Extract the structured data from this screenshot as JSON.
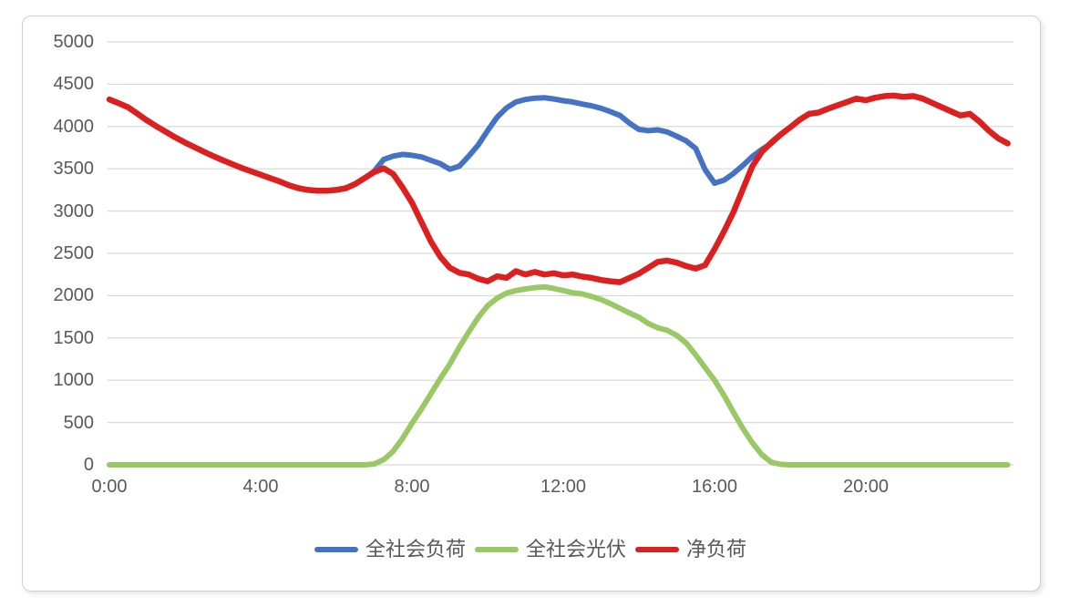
{
  "chart_data": {
    "type": "line",
    "title": "",
    "grid": "horizontal",
    "legend_position": "bottom",
    "background": "#ffffff",
    "gridline_color": "#d9d9d9",
    "axis_text_color": "#595959",
    "y_axis": {
      "min": 0,
      "max": 5000,
      "step": 500,
      "tick_labels": [
        "5000",
        "4500",
        "4000",
        "3500",
        "3000",
        "2500",
        "2000",
        "1500",
        "1000",
        "500",
        "0"
      ]
    },
    "x_axis": {
      "tick_labels": [
        "0:00",
        "4:00",
        "8:00",
        "12:00",
        "16:00",
        "20:00"
      ],
      "tick_hours": [
        0,
        4,
        8,
        12,
        16,
        20
      ],
      "start_hour": 0,
      "interval_hours": 0.25,
      "points": 96,
      "end_label": "23:45"
    },
    "series": [
      {
        "name": "全社会负荷",
        "color": "#4472c4",
        "values": [
          4320,
          4275,
          4225,
          4150,
          4070,
          4000,
          3935,
          3870,
          3810,
          3755,
          3700,
          3650,
          3600,
          3555,
          3510,
          3470,
          3430,
          3390,
          3350,
          3305,
          3270,
          3250,
          3240,
          3240,
          3250,
          3270,
          3320,
          3390,
          3470,
          3610,
          3650,
          3670,
          3660,
          3640,
          3600,
          3560,
          3495,
          3530,
          3650,
          3780,
          3950,
          4110,
          4220,
          4290,
          4320,
          4335,
          4340,
          4325,
          4305,
          4290,
          4265,
          4245,
          4215,
          4175,
          4130,
          4040,
          3965,
          3950,
          3960,
          3935,
          3885,
          3830,
          3740,
          3490,
          3330,
          3365,
          3445,
          3540,
          3645,
          3730,
          3800,
          3905,
          3990,
          4080,
          4150,
          4165,
          4210,
          4250,
          4290,
          4330,
          4310,
          4340,
          4360,
          4365,
          4350,
          4360,
          4330,
          4280,
          4230,
          4180,
          4130,
          4150,
          4060,
          3950,
          3860,
          3800
        ]
      },
      {
        "name": "全社会光伏",
        "color": "#9ac864",
        "values": [
          0,
          0,
          0,
          0,
          0,
          0,
          0,
          0,
          0,
          0,
          0,
          0,
          0,
          0,
          0,
          0,
          0,
          0,
          0,
          0,
          0,
          0,
          0,
          0,
          0,
          0,
          0,
          0,
          10,
          60,
          160,
          310,
          490,
          660,
          840,
          1020,
          1190,
          1390,
          1570,
          1740,
          1880,
          1970,
          2030,
          2060,
          2080,
          2095,
          2105,
          2085,
          2060,
          2035,
          2020,
          1990,
          1955,
          1905,
          1850,
          1795,
          1745,
          1670,
          1620,
          1590,
          1530,
          1440,
          1300,
          1150,
          1000,
          820,
          620,
          430,
          260,
          120,
          30,
          5,
          0,
          0,
          0,
          0,
          0,
          0,
          0,
          0,
          0,
          0,
          0,
          0,
          0,
          0,
          0,
          0,
          0,
          0,
          0,
          0,
          0,
          0,
          0,
          0
        ]
      },
      {
        "name": "净负荷",
        "color": "#dc2020",
        "values": [
          4320,
          4275,
          4225,
          4150,
          4070,
          4000,
          3935,
          3870,
          3810,
          3755,
          3700,
          3650,
          3600,
          3555,
          3510,
          3470,
          3430,
          3390,
          3350,
          3305,
          3270,
          3250,
          3240,
          3240,
          3250,
          3270,
          3320,
          3390,
          3460,
          3505,
          3440,
          3280,
          3100,
          2870,
          2640,
          2460,
          2330,
          2270,
          2250,
          2200,
          2170,
          2230,
          2210,
          2290,
          2250,
          2280,
          2250,
          2265,
          2240,
          2250,
          2225,
          2210,
          2185,
          2170,
          2160,
          2210,
          2260,
          2330,
          2400,
          2415,
          2390,
          2350,
          2320,
          2360,
          2550,
          2760,
          2990,
          3260,
          3530,
          3700,
          3810,
          3905,
          3990,
          4080,
          4150,
          4165,
          4210,
          4250,
          4290,
          4330,
          4310,
          4340,
          4360,
          4365,
          4350,
          4360,
          4330,
          4280,
          4230,
          4180,
          4130,
          4150,
          4060,
          3950,
          3860,
          3800
        ]
      }
    ]
  }
}
